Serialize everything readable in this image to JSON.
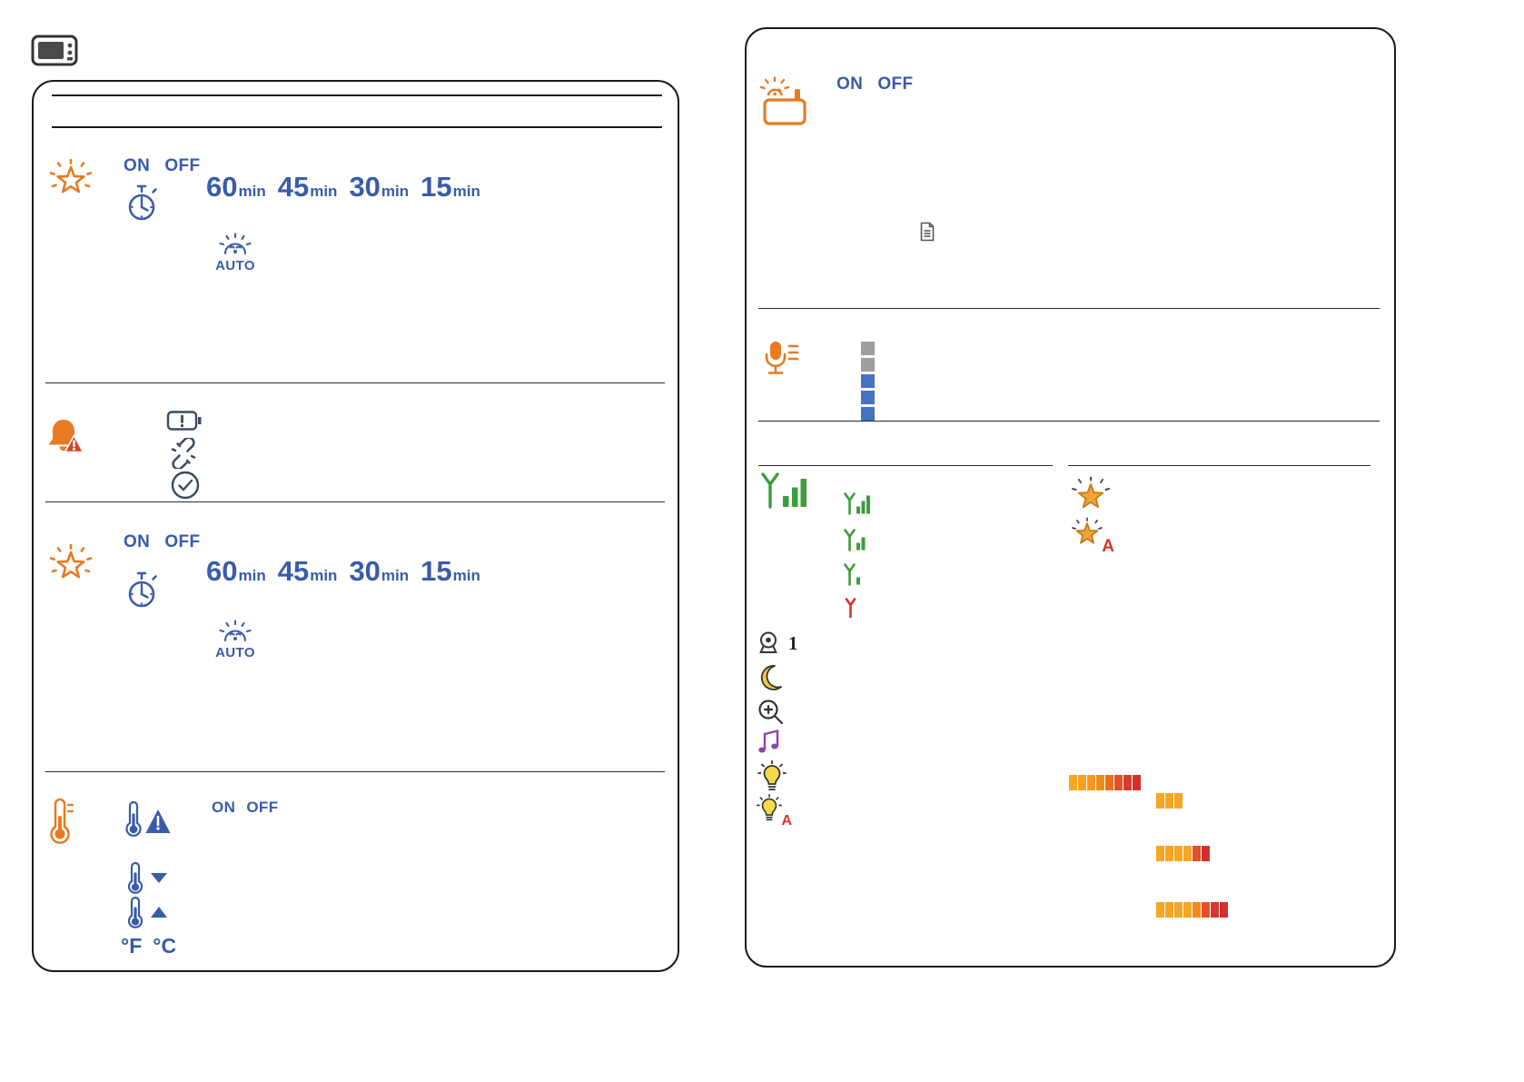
{
  "colors": {
    "accent_orange": "#E87A22",
    "accent_blue": "#3A5BA9",
    "signal_green": "#3E9B3E",
    "alert_red": "#D6332C",
    "star_gold": "#F0A437",
    "bulb_yellow": "#F7D84B",
    "music_purple": "#8E44AD",
    "level_gray": "#9E9E9E",
    "level_blue": "#4472C4",
    "ink": "#1F1F1F"
  },
  "left_panel": {
    "glow_top": {
      "on": "ON",
      "off": "OFF",
      "timer_options": [
        {
          "value": "60",
          "unit": "min"
        },
        {
          "value": "45",
          "unit": "min"
        },
        {
          "value": "30",
          "unit": "min"
        },
        {
          "value": "15",
          "unit": "min"
        }
      ],
      "auto_label": "AUTO"
    },
    "glow_bottom": {
      "on": "ON",
      "off": "OFF",
      "timer_options": [
        {
          "value": "60",
          "unit": "min"
        },
        {
          "value": "45",
          "unit": "min"
        },
        {
          "value": "30",
          "unit": "min"
        },
        {
          "value": "15",
          "unit": "min"
        }
      ],
      "auto_label": "AUTO"
    },
    "temperature": {
      "on": "ON",
      "off": "OFF",
      "fahrenheit_label": "°F",
      "celsius_label": "°C"
    }
  },
  "right_panel": {
    "unit": {
      "on": "ON",
      "off": "OFF"
    },
    "microphone": {
      "level_squares": [
        "#9E9E9E",
        "#9E9E9E",
        "#4472C4",
        "#4472C4",
        "#4472C4"
      ]
    },
    "status": {
      "camera_number": "1",
      "star_auto_letter": "A",
      "bulb_auto_letter": "A",
      "brightness_bars": {
        "row1": [
          "#F6A623",
          "#F5A021",
          "#F4981F",
          "#F18A1D",
          "#EA6E20",
          "#E15026",
          "#DA3A2B",
          "#D52E2A"
        ],
        "row2": [
          "#F6A623",
          "#F6A623",
          "#F6A623"
        ],
        "row3": [
          "#F6A623",
          "#F6A623",
          "#F6A623",
          "#F6A623",
          "#E14E28",
          "#D52E2A"
        ],
        "row4": [
          "#F6A623",
          "#F6A623",
          "#F6A623",
          "#F6A623",
          "#F08A1D",
          "#E35226",
          "#DA372B",
          "#D52E2A"
        ]
      }
    }
  },
  "icons": {
    "top_left": "parent-unit-icon",
    "left_panel": [
      "glow-star-icon",
      "timer-icon",
      "auto-glow-icon",
      "alerts-bell-icon",
      "battery-low-icon",
      "link-lost-icon",
      "check-ok-icon",
      "temperature-menu-icon",
      "temperature-alert-icon",
      "temperature-min-icon",
      "temperature-max-icon"
    ],
    "right_panel": [
      "baby-unit-icon",
      "note-icon",
      "microphone-icon",
      "signal-strength-icon",
      "signal-level-3-icon",
      "signal-level-2-icon",
      "signal-level-1-icon",
      "signal-level-0-icon",
      "glow-on-star-icon",
      "glow-auto-star-icon",
      "camera-icon",
      "night-mode-icon",
      "zoom-icon",
      "lullaby-icon",
      "brightness-icon",
      "brightness-auto-icon"
    ]
  }
}
